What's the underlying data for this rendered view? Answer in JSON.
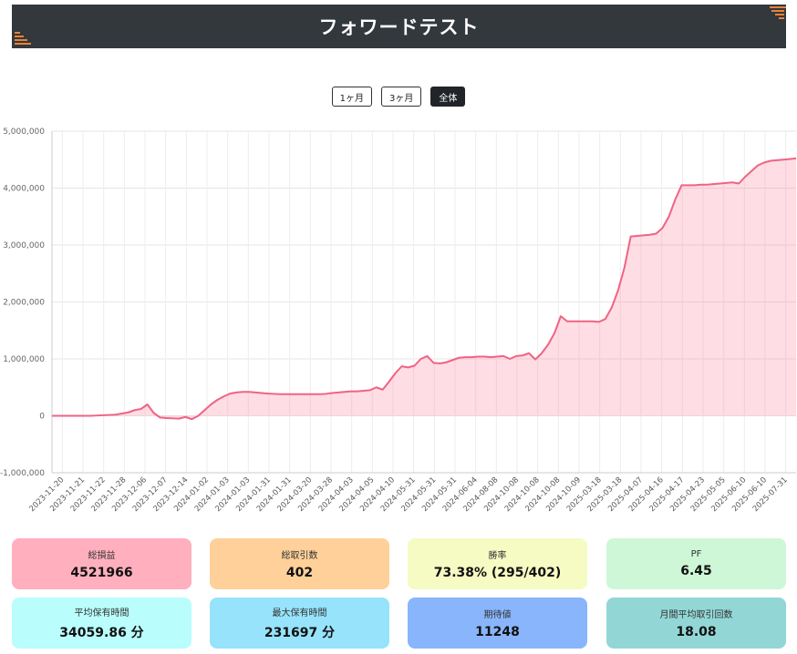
{
  "header": {
    "title": "フォワードテスト"
  },
  "range_buttons": {
    "one_month": "1ヶ月",
    "three_months": "3ヶ月",
    "all": "全体"
  },
  "colors": {
    "line": "#f06384",
    "fill": "rgba(255,99,132,0.22)",
    "header_bg": "#33383d",
    "accent": "#e8813a"
  },
  "chart_data": {
    "type": "area",
    "ylim": [
      -1000000,
      5000000
    ],
    "y_ticks": [
      "5,000,000",
      "4,000,000",
      "3,000,000",
      "2,000,000",
      "1,000,000",
      "0",
      "-1,000,000"
    ],
    "x_labels": [
      "2023-11-20",
      "2023-11-21",
      "2023-11-22",
      "2023-11-28",
      "2023-12-06",
      "2023-12-07",
      "2023-12-14",
      "2024-01-02",
      "2024-01-03",
      "2024-01-03",
      "2024-01-31",
      "2024-01-31",
      "2024-03-20",
      "2024-03-28",
      "2024-04-03",
      "2024-04-05",
      "2024-04-10",
      "2024-05-31",
      "2024-05-31",
      "2024-05-31",
      "2024-06-04",
      "2024-08-08",
      "2024-10-08",
      "2024-10-08",
      "2024-10-08",
      "2024-10-09",
      "2025-03-18",
      "2025-03-18",
      "2025-04-07",
      "2025-04-16",
      "2025-04-17",
      "2025-04-23",
      "2025-05-05",
      "2025-06-10",
      "2025-06-10",
      "2025-07-31"
    ],
    "cumulative_profit": [
      0,
      0,
      0,
      0,
      0,
      0,
      0,
      5000,
      10000,
      15000,
      20000,
      40000,
      60000,
      100000,
      120000,
      200000,
      50000,
      -30000,
      -40000,
      -45000,
      -50000,
      -20000,
      -60000,
      0,
      100000,
      200000,
      280000,
      340000,
      390000,
      410000,
      420000,
      420000,
      410000,
      400000,
      390000,
      385000,
      380000,
      380000,
      380000,
      380000,
      380000,
      380000,
      380000,
      385000,
      400000,
      410000,
      420000,
      430000,
      430000,
      440000,
      450000,
      500000,
      460000,
      600000,
      750000,
      870000,
      850000,
      880000,
      1000000,
      1050000,
      930000,
      920000,
      940000,
      980000,
      1020000,
      1030000,
      1030000,
      1040000,
      1040000,
      1030000,
      1040000,
      1050000,
      1000000,
      1050000,
      1060000,
      1100000,
      990000,
      1100000,
      1250000,
      1450000,
      1750000,
      1660000,
      1660000,
      1660000,
      1660000,
      1660000,
      1650000,
      1700000,
      1900000,
      2200000,
      2600000,
      3150000,
      3160000,
      3170000,
      3180000,
      3200000,
      3300000,
      3500000,
      3800000,
      4050000,
      4050000,
      4050000,
      4060000,
      4060000,
      4070000,
      4080000,
      4090000,
      4100000,
      4080000,
      4200000,
      4300000,
      4400000,
      4450000,
      4480000,
      4490000,
      4500000,
      4510000,
      4521966
    ]
  },
  "stats": [
    {
      "label": "総損益",
      "value": "4521966",
      "color": "#ffafbe"
    },
    {
      "label": "総取引数",
      "value": "402",
      "color": "#ffd099"
    },
    {
      "label": "勝率",
      "value": "73.38% (295/402)",
      "color": "#f5fbc2"
    },
    {
      "label": "PF",
      "value": "6.45",
      "color": "#cdf7d6"
    },
    {
      "label": "平均保有時間",
      "value": "34059.86 分",
      "color": "#b9fdfd"
    },
    {
      "label": "最大保有時間",
      "value": "231697 分",
      "color": "#96e3fb"
    },
    {
      "label": "期待値",
      "value": "11248",
      "color": "#88b5fb"
    },
    {
      "label": "月間平均取引回数",
      "value": "18.08",
      "color": "#93d6d6"
    }
  ]
}
